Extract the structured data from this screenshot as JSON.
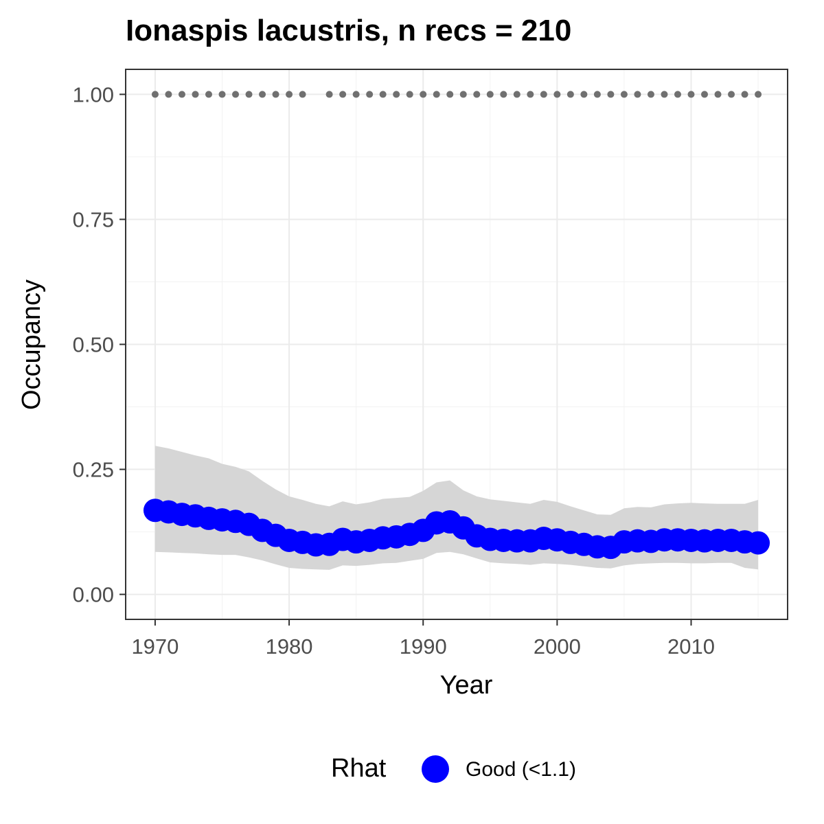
{
  "chart_data": {
    "type": "line",
    "title": "Ionaspis lacustris, n recs = 210",
    "xlabel": "Year",
    "ylabel": "Occupancy",
    "xlim": [
      1967.8,
      2017.2
    ],
    "ylim": [
      -0.05,
      1.05
    ],
    "x_ticks": [
      1970,
      1980,
      1990,
      2000,
      2010
    ],
    "y_ticks": [
      0.0,
      0.25,
      0.5,
      0.75,
      1.0
    ],
    "y_tick_labels": [
      "0.00",
      "0.25",
      "0.50",
      "0.75",
      "1.00"
    ],
    "grid": true,
    "legend": {
      "title": "Rhat",
      "position": "bottom",
      "entries": [
        {
          "label": "Good (<1.1)",
          "color": "#0000ff"
        }
      ]
    },
    "series": [
      {
        "name": "Good (<1.1)",
        "color": "#0000ff",
        "x": [
          1970,
          1971,
          1972,
          1973,
          1974,
          1975,
          1976,
          1977,
          1978,
          1979,
          1980,
          1981,
          1982,
          1983,
          1984,
          1985,
          1986,
          1987,
          1988,
          1989,
          1990,
          1991,
          1992,
          1993,
          1994,
          1995,
          1996,
          1997,
          1998,
          1999,
          2000,
          2001,
          2002,
          2003,
          2004,
          2005,
          2006,
          2007,
          2008,
          2009,
          2010,
          2011,
          2012,
          2013,
          2014,
          2015
        ],
        "y": [
          0.168,
          0.165,
          0.16,
          0.157,
          0.152,
          0.149,
          0.146,
          0.14,
          0.128,
          0.118,
          0.108,
          0.104,
          0.099,
          0.1,
          0.11,
          0.105,
          0.108,
          0.113,
          0.115,
          0.12,
          0.128,
          0.143,
          0.145,
          0.133,
          0.117,
          0.11,
          0.108,
          0.107,
          0.107,
          0.112,
          0.109,
          0.104,
          0.1,
          0.095,
          0.094,
          0.105,
          0.107,
          0.106,
          0.109,
          0.109,
          0.108,
          0.107,
          0.108,
          0.108,
          0.105,
          0.103
        ],
        "lower": [
          0.085,
          0.084,
          0.083,
          0.082,
          0.08,
          0.079,
          0.079,
          0.074,
          0.068,
          0.06,
          0.053,
          0.051,
          0.05,
          0.049,
          0.058,
          0.057,
          0.059,
          0.062,
          0.063,
          0.067,
          0.071,
          0.083,
          0.085,
          0.08,
          0.072,
          0.064,
          0.062,
          0.061,
          0.059,
          0.062,
          0.061,
          0.059,
          0.056,
          0.053,
          0.052,
          0.058,
          0.061,
          0.062,
          0.063,
          0.063,
          0.062,
          0.062,
          0.063,
          0.063,
          0.053,
          0.05
        ],
        "upper": [
          0.297,
          0.292,
          0.285,
          0.278,
          0.272,
          0.261,
          0.255,
          0.246,
          0.227,
          0.21,
          0.196,
          0.189,
          0.181,
          0.176,
          0.186,
          0.18,
          0.184,
          0.191,
          0.193,
          0.195,
          0.207,
          0.224,
          0.228,
          0.208,
          0.196,
          0.19,
          0.187,
          0.184,
          0.181,
          0.189,
          0.185,
          0.176,
          0.168,
          0.16,
          0.159,
          0.172,
          0.175,
          0.174,
          0.18,
          0.182,
          0.183,
          0.182,
          0.181,
          0.181,
          0.181,
          0.189
        ]
      }
    ],
    "top_points": {
      "color": "#707070",
      "y": 1.0,
      "x": [
        1970,
        1971,
        1972,
        1973,
        1974,
        1975,
        1976,
        1977,
        1978,
        1979,
        1980,
        1981,
        1983,
        1984,
        1985,
        1986,
        1987,
        1988,
        1989,
        1990,
        1991,
        1992,
        1993,
        1994,
        1995,
        1996,
        1997,
        1998,
        1999,
        2000,
        2001,
        2002,
        2003,
        2004,
        2005,
        2006,
        2007,
        2008,
        2009,
        2010,
        2011,
        2012,
        2013,
        2014,
        2015
      ]
    }
  }
}
